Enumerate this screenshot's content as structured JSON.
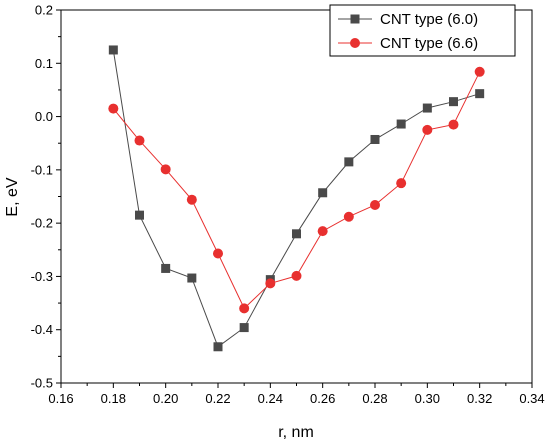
{
  "chart_data": {
    "type": "line",
    "xlabel": "r, nm",
    "ylabel": "E, eV",
    "xlim": [
      0.16,
      0.34
    ],
    "ylim": [
      -0.5,
      0.2
    ],
    "xticks": [
      "0.16",
      "0.18",
      "0.20",
      "0.22",
      "0.24",
      "0.26",
      "0.28",
      "0.30",
      "0.32",
      "0.34"
    ],
    "yticks": [
      "-0.5",
      "-0.4",
      "-0.3",
      "-0.2",
      "-0.1",
      "0.0",
      "0.1",
      "0.2"
    ],
    "legend_position": "top-right",
    "grid": false,
    "series": [
      {
        "name": "CNT type (6.0)",
        "marker": "square",
        "color": "#4a4a4a",
        "x": [
          0.18,
          0.19,
          0.2,
          0.21,
          0.22,
          0.23,
          0.24,
          0.25,
          0.26,
          0.27,
          0.28,
          0.29,
          0.3,
          0.31,
          0.32
        ],
        "y": [
          0.125,
          -0.185,
          -0.285,
          -0.303,
          -0.432,
          -0.396,
          -0.306,
          -0.22,
          -0.143,
          -0.085,
          -0.043,
          -0.014,
          0.016,
          0.028,
          0.043
        ]
      },
      {
        "name": "CNT type (6.6)",
        "marker": "circle",
        "color": "#e8302f",
        "x": [
          0.18,
          0.19,
          0.2,
          0.21,
          0.22,
          0.23,
          0.24,
          0.25,
          0.26,
          0.27,
          0.28,
          0.29,
          0.3,
          0.31,
          0.32
        ],
        "y": [
          0.015,
          -0.045,
          -0.099,
          -0.156,
          -0.257,
          -0.36,
          -0.313,
          -0.299,
          -0.215,
          -0.188,
          -0.166,
          -0.125,
          -0.025,
          -0.015,
          0.084
        ]
      }
    ]
  }
}
